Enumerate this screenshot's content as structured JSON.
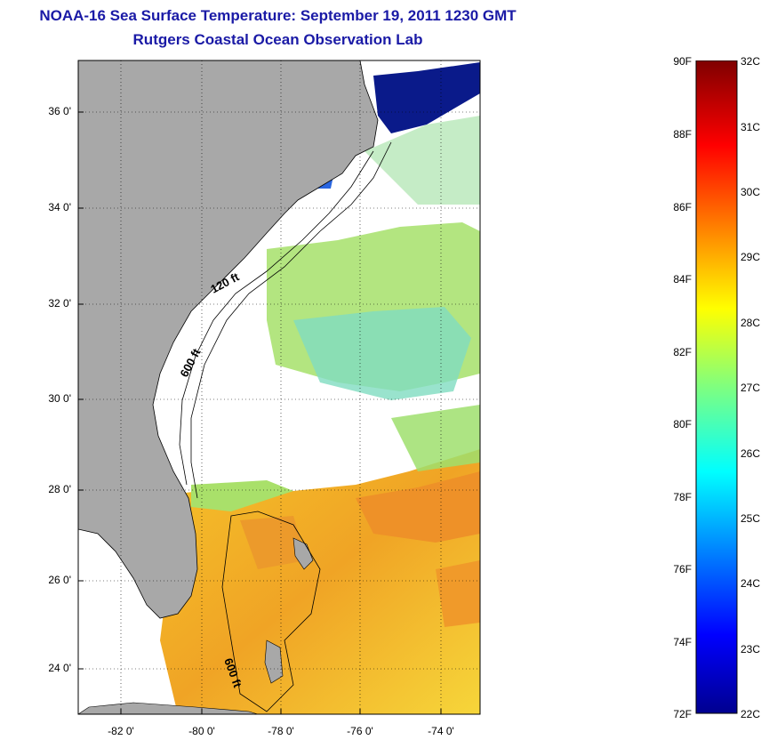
{
  "title": "NOAA-16 Sea Surface Temperature:  September 19, 2011 1230 GMT",
  "subtitle": "Rutgers Coastal Ocean Observation Lab",
  "lat_labels": [
    "36 0'",
    "34 0'",
    "32 0'",
    "30 0'",
    "28 0'",
    "26 0'",
    "24 0'"
  ],
  "lon_labels": [
    "-82 0'",
    "-80 0'",
    "-78 0'",
    "-76 0'",
    "-74 0'"
  ],
  "contour_labels": [
    "120 ft",
    "600 ft",
    "600 ft"
  ],
  "colorbar": {
    "f_labels": [
      "90F",
      "88F",
      "86F",
      "84F",
      "82F",
      "80F",
      "78F",
      "76F",
      "74F",
      "72F"
    ],
    "c_labels": [
      "32C",
      "31C",
      "30C",
      "29C",
      "28C",
      "27C",
      "26C",
      "25C",
      "24C",
      "23C",
      "22C"
    ]
  },
  "colors": {
    "title": "#1a1aa6",
    "land": "#a8a8a8",
    "ocean_clear": "#ffffff"
  }
}
